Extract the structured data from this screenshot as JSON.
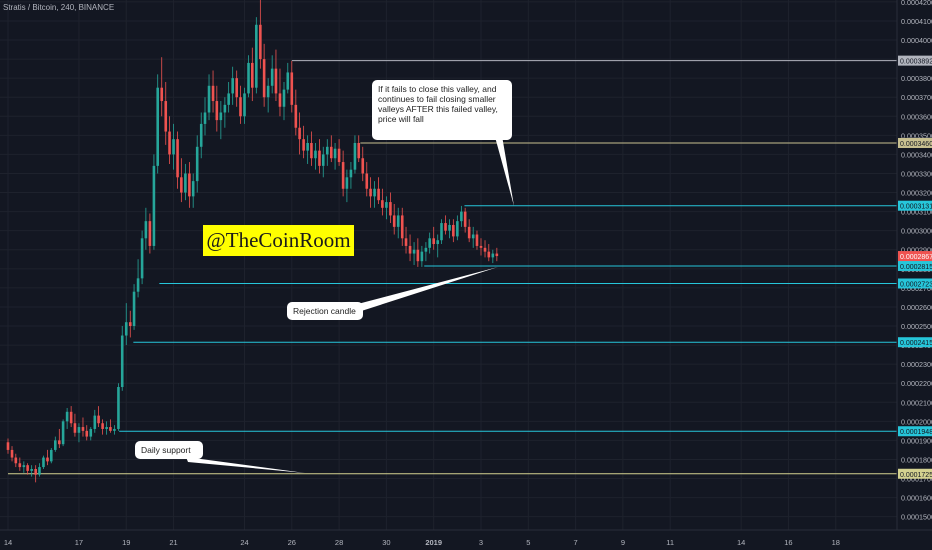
{
  "header": {
    "title": "Stratis / Bitcoin, 240, BINANCE"
  },
  "watermark": {
    "text": "@TheCoinRoom"
  },
  "annotations": {
    "valley_note": "If it fails to close this valley, and continues to fail closing smaller valleys AFTER this failed valley, price will fall",
    "rejection": "Rejection candle",
    "support": "Daily support"
  },
  "chart_data": {
    "type": "candlestick",
    "title": "Stratis / Bitcoin, 240, BINANCE",
    "ylim": [
      0.000143,
      0.000421
    ],
    "y_ticks": [
      "0.0001500",
      "0.0001600",
      "0.0001700",
      "0.0001800",
      "0.0001900",
      "0.0002000",
      "0.0002100",
      "0.0002200",
      "0.0002300",
      "0.0002400",
      "0.0002500",
      "0.0002600",
      "0.0002700",
      "0.0002800",
      "0.0002900",
      "0.0003000",
      "0.0003100",
      "0.0003200",
      "0.0003300",
      "0.0003400",
      "0.0003500",
      "0.0003600",
      "0.0003700",
      "0.0003800",
      "0.0003900",
      "0.0004000",
      "0.0004100",
      "0.0004200"
    ],
    "x_ticks": [
      {
        "label": "14",
        "day": 0
      },
      {
        "label": "17",
        "day": 3
      },
      {
        "label": "19",
        "day": 5
      },
      {
        "label": "21",
        "day": 7
      },
      {
        "label": "24",
        "day": 10
      },
      {
        "label": "26",
        "day": 12
      },
      {
        "label": "28",
        "day": 14
      },
      {
        "label": "30",
        "day": 16
      },
      {
        "label": "2019",
        "day": 18
      },
      {
        "label": "3",
        "day": 20
      },
      {
        "label": "5",
        "day": 22
      },
      {
        "label": "7",
        "day": 24
      },
      {
        "label": "9",
        "day": 26
      },
      {
        "label": "11",
        "day": 28
      },
      {
        "label": "14",
        "day": 31
      },
      {
        "label": "16",
        "day": 33
      },
      {
        "label": "18",
        "day": 35
      }
    ],
    "levels": [
      {
        "value": 0.0003892,
        "label": "0.0003892",
        "color": "#b2b5be",
        "text_color": "#131722",
        "from_day": 12.0
      },
      {
        "value": 0.000346,
        "label": "0.0003460",
        "color": "#c8c090",
        "text_color": "#131722",
        "from_day": 14.9
      },
      {
        "value": 0.0003131,
        "label": "0.0003131",
        "color": "#26c6da",
        "text_color": "#131722",
        "from_day": 19.3
      },
      {
        "value": 0.0002815,
        "label": "0.0002815",
        "color": "#26c6da",
        "text_color": "#131722",
        "from_day": 17.6
      },
      {
        "value": 0.0002723,
        "label": "0.0002723",
        "color": "#26c6da",
        "text_color": "#131722",
        "from_day": 6.4
      },
      {
        "value": 0.0002415,
        "label": "0.0002415",
        "color": "#26c6da",
        "text_color": "#131722",
        "from_day": 5.3
      },
      {
        "value": 0.0001948,
        "label": "0.0001948",
        "color": "#26c6da",
        "text_color": "#131722",
        "from_day": 4.7
      },
      {
        "value": 0.0001725,
        "label": "0.0001725",
        "color": "#d4d290",
        "text_color": "#131722",
        "from_day": 0.0
      }
    ],
    "last_price": {
      "value": 0.0002867,
      "label": "0.0002867",
      "color": "#ef5350"
    },
    "candles": [
      [
        0.0,
        0.000189,
        0.000191,
        0.000183,
        0.000185
      ],
      [
        0.17,
        0.000185,
        0.000187,
        0.000179,
        0.000181
      ],
      [
        0.33,
        0.000181,
        0.000183,
        0.000176,
        0.000178
      ],
      [
        0.5,
        0.000178,
        0.000181,
        0.000174,
        0.000176
      ],
      [
        0.67,
        0.000176,
        0.000179,
        0.000173,
        0.000177
      ],
      [
        0.83,
        0.000177,
        0.000178,
        0.000172,
        0.000174
      ],
      [
        1.0,
        0.000174,
        0.000177,
        0.000171,
        0.000175
      ],
      [
        1.17,
        0.000175,
        0.000177,
        0.000168,
        0.000172
      ],
      [
        1.33,
        0.000172,
        0.000178,
        0.000171,
        0.000176
      ],
      [
        1.5,
        0.000176,
        0.000182,
        0.000175,
        0.000181
      ],
      [
        1.67,
        0.000181,
        0.000185,
        0.000177,
        0.000179
      ],
      [
        1.83,
        0.000179,
        0.000186,
        0.000178,
        0.000185
      ],
      [
        2.0,
        0.000185,
        0.000192,
        0.000184,
        0.00019
      ],
      [
        2.17,
        0.00019,
        0.000196,
        0.000186,
        0.000188
      ],
      [
        2.33,
        0.000188,
        0.000201,
        0.000187,
        0.0002
      ],
      [
        2.5,
        0.0002,
        0.000207,
        0.000196,
        0.000205
      ],
      [
        2.67,
        0.000205,
        0.000208,
        0.000197,
        0.000199
      ],
      [
        2.83,
        0.000199,
        0.000204,
        0.000192,
        0.000194
      ],
      [
        3.0,
        0.000194,
        0.000199,
        0.000189,
        0.000197
      ],
      [
        3.17,
        0.000197,
        0.000202,
        0.000192,
        0.000195
      ],
      [
        3.33,
        0.000195,
        0.000198,
        0.00019,
        0.000192
      ],
      [
        3.5,
        0.000192,
        0.000197,
        0.00019,
        0.000196
      ],
      [
        3.67,
        0.000196,
        0.000206,
        0.000194,
        0.000203
      ],
      [
        3.83,
        0.000203,
        0.000208,
        0.000197,
        0.000199
      ],
      [
        4.0,
        0.000199,
        0.000201,
        0.000193,
        0.000196
      ],
      [
        4.17,
        0.000196,
        0.0002,
        0.000193,
        0.000197
      ],
      [
        4.33,
        0.000197,
        0.000201,
        0.000194,
        0.000195
      ],
      [
        4.5,
        0.000195,
        0.000198,
        0.000193,
        0.000196
      ],
      [
        4.67,
        0.000196,
        0.00022,
        0.000195,
        0.000218
      ],
      [
        4.83,
        0.000218,
        0.00025,
        0.000216,
        0.000245
      ],
      [
        5.0,
        0.000245,
        0.000262,
        0.00024,
        0.000252
      ],
      [
        5.17,
        0.000252,
        0.000258,
        0.000244,
        0.00025
      ],
      [
        5.33,
        0.00025,
        0.000272,
        0.000248,
        0.000268
      ],
      [
        5.5,
        0.000268,
        0.000285,
        0.000265,
        0.000275
      ],
      [
        5.67,
        0.000275,
        0.0003,
        0.000272,
        0.000296
      ],
      [
        5.83,
        0.000296,
        0.000312,
        0.00029,
        0.000305
      ],
      [
        6.0,
        0.000305,
        0.000309,
        0.000288,
        0.000292
      ],
      [
        6.17,
        0.000292,
        0.00034,
        0.00029,
        0.000334
      ],
      [
        6.33,
        0.000334,
        0.000382,
        0.00033,
        0.000375
      ],
      [
        6.5,
        0.000375,
        0.000391,
        0.00036,
        0.000368
      ],
      [
        6.67,
        0.000368,
        0.000378,
        0.000345,
        0.000352
      ],
      [
        6.83,
        0.000352,
        0.00036,
        0.000335,
        0.00034
      ],
      [
        7.0,
        0.00034,
        0.000356,
        0.000332,
        0.000348
      ],
      [
        7.17,
        0.000348,
        0.000352,
        0.000322,
        0.000328
      ],
      [
        7.33,
        0.000328,
        0.000338,
        0.000315,
        0.00032
      ],
      [
        7.5,
        0.00032,
        0.000335,
        0.000316,
        0.00033
      ],
      [
        7.67,
        0.00033,
        0.000336,
        0.000312,
        0.000318
      ],
      [
        7.83,
        0.000318,
        0.00033,
        0.000312,
        0.000326
      ],
      [
        8.0,
        0.000326,
        0.00035,
        0.00032,
        0.000344
      ],
      [
        8.17,
        0.000344,
        0.000362,
        0.000338,
        0.000356
      ],
      [
        8.33,
        0.000356,
        0.00037,
        0.00035,
        0.000362
      ],
      [
        8.5,
        0.000362,
        0.000382,
        0.000358,
        0.000376
      ],
      [
        8.67,
        0.000376,
        0.000384,
        0.000362,
        0.000368
      ],
      [
        8.83,
        0.000368,
        0.000376,
        0.000352,
        0.000358
      ],
      [
        9.0,
        0.000358,
        0.000368,
        0.000348,
        0.000362
      ],
      [
        9.17,
        0.000362,
        0.00037,
        0.000354,
        0.000366
      ],
      [
        9.33,
        0.000366,
        0.000378,
        0.000362,
        0.000372
      ],
      [
        9.5,
        0.000372,
        0.000386,
        0.000366,
        0.00038
      ],
      [
        9.67,
        0.00038,
        0.000384,
        0.000365,
        0.00037
      ],
      [
        9.83,
        0.00037,
        0.000376,
        0.000356,
        0.00036
      ],
      [
        10.0,
        0.00036,
        0.000375,
        0.000356,
        0.000372
      ],
      [
        10.17,
        0.000372,
        0.000392,
        0.00037,
        0.000388
      ],
      [
        10.33,
        0.000388,
        0.000396,
        0.000368,
        0.000375
      ],
      [
        10.5,
        0.000375,
        0.000412,
        0.000372,
        0.000408
      ],
      [
        10.67,
        0.000408,
        0.000422,
        0.000385,
        0.00039
      ],
      [
        10.83,
        0.00039,
        0.000398,
        0.000365,
        0.00037
      ],
      [
        11.0,
        0.00037,
        0.00038,
        0.000362,
        0.000376
      ],
      [
        11.17,
        0.000376,
        0.000392,
        0.000372,
        0.000385
      ],
      [
        11.33,
        0.000385,
        0.000395,
        0.000368,
        0.000372
      ],
      [
        11.5,
        0.000372,
        0.000385,
        0.00036,
        0.000365
      ],
      [
        11.67,
        0.000365,
        0.000378,
        0.000358,
        0.000374
      ],
      [
        11.83,
        0.000374,
        0.000388,
        0.000372,
        0.000383
      ],
      [
        12.0,
        0.000383,
        0.000389,
        0.000362,
        0.000366
      ],
      [
        12.17,
        0.000366,
        0.000374,
        0.00035,
        0.000354
      ],
      [
        12.33,
        0.000354,
        0.000362,
        0.00034,
        0.000348
      ],
      [
        12.5,
        0.000348,
        0.000355,
        0.000338,
        0.000342
      ],
      [
        12.67,
        0.000342,
        0.00035,
        0.000335,
        0.000346
      ],
      [
        12.83,
        0.000346,
        0.000352,
        0.000334,
        0.000338
      ],
      [
        13.0,
        0.000338,
        0.000346,
        0.000332,
        0.000342
      ],
      [
        13.17,
        0.000342,
        0.000348,
        0.00033,
        0.000334
      ],
      [
        13.33,
        0.000334,
        0.000344,
        0.000328,
        0.00034
      ],
      [
        13.5,
        0.00034,
        0.000348,
        0.000334,
        0.000344
      ],
      [
        13.67,
        0.000344,
        0.00035,
        0.000336,
        0.000338
      ],
      [
        13.83,
        0.000338,
        0.000346,
        0.000332,
        0.000343
      ],
      [
        14.0,
        0.000343,
        0.000348,
        0.000334,
        0.000336
      ],
      [
        14.17,
        0.000336,
        0.000342,
        0.000318,
        0.000322
      ],
      [
        14.33,
        0.000322,
        0.000332,
        0.000315,
        0.000328
      ],
      [
        14.5,
        0.000328,
        0.000336,
        0.000322,
        0.000332
      ],
      [
        14.67,
        0.000332,
        0.00035,
        0.00033,
        0.000346
      ],
      [
        14.83,
        0.000346,
        0.00035,
        0.000336,
        0.000338
      ],
      [
        15.0,
        0.000338,
        0.000344,
        0.000326,
        0.00033
      ],
      [
        15.17,
        0.00033,
        0.000336,
        0.000318,
        0.000322
      ],
      [
        15.33,
        0.000322,
        0.000328,
        0.000312,
        0.000318
      ],
      [
        15.5,
        0.000318,
        0.000326,
        0.000312,
        0.000322
      ],
      [
        15.67,
        0.000322,
        0.000328,
        0.000314,
        0.000316
      ],
      [
        15.83,
        0.000316,
        0.000322,
        0.000308,
        0.000312
      ],
      [
        16.0,
        0.000312,
        0.000318,
        0.000306,
        0.000315
      ],
      [
        16.17,
        0.000315,
        0.00032,
        0.000304,
        0.000308
      ],
      [
        16.33,
        0.000308,
        0.000314,
        0.000298,
        0.000302
      ],
      [
        16.5,
        0.000302,
        0.000312,
        0.000296,
        0.000308
      ],
      [
        16.67,
        0.000308,
        0.000312,
        0.000292,
        0.000296
      ],
      [
        16.83,
        0.000296,
        0.000302,
        0.000288,
        0.000292
      ],
      [
        17.0,
        0.000292,
        0.000298,
        0.000284,
        0.000288
      ],
      [
        17.17,
        0.000288,
        0.000294,
        0.000282,
        0.00029
      ],
      [
        17.33,
        0.00029,
        0.000296,
        0.000281,
        0.000284
      ],
      [
        17.5,
        0.000284,
        0.000292,
        0.000281,
        0.000289
      ],
      [
        17.67,
        0.000289,
        0.000294,
        0.000284,
        0.000291
      ],
      [
        17.83,
        0.000291,
        0.000299,
        0.000288,
        0.000296
      ],
      [
        18.0,
        0.000296,
        0.000302,
        0.00029,
        0.000293
      ],
      [
        18.17,
        0.000293,
        0.000298,
        0.000286,
        0.000295
      ],
      [
        18.33,
        0.000295,
        0.000306,
        0.000293,
        0.000304
      ],
      [
        18.5,
        0.000304,
        0.000308,
        0.000298,
        0.0003
      ],
      [
        18.67,
        0.0003,
        0.000306,
        0.000296,
        0.000303
      ],
      [
        18.83,
        0.000303,
        0.000306,
        0.000294,
        0.000297
      ],
      [
        19.0,
        0.000297,
        0.000308,
        0.000295,
        0.000305
      ],
      [
        19.17,
        0.000305,
        0.000313,
        0.000302,
        0.00031
      ],
      [
        19.33,
        0.00031,
        0.000312,
        0.000299,
        0.000302
      ],
      [
        19.5,
        0.000302,
        0.000306,
        0.000294,
        0.000296
      ],
      [
        19.67,
        0.000296,
        0.000302,
        0.000291,
        0.000298
      ],
      [
        19.83,
        0.000298,
        0.0003,
        0.00029,
        0.000292
      ],
      [
        20.0,
        0.000292,
        0.000296,
        0.000287,
        0.000291
      ],
      [
        20.17,
        0.000291,
        0.000295,
        0.000286,
        0.000289
      ],
      [
        20.33,
        0.000289,
        0.000293,
        0.000284,
        0.000286
      ],
      [
        20.5,
        0.000286,
        0.00029,
        0.000283,
        0.000288
      ],
      [
        20.67,
        0.000288,
        0.000291,
        0.000284,
        0.0002867
      ]
    ]
  }
}
